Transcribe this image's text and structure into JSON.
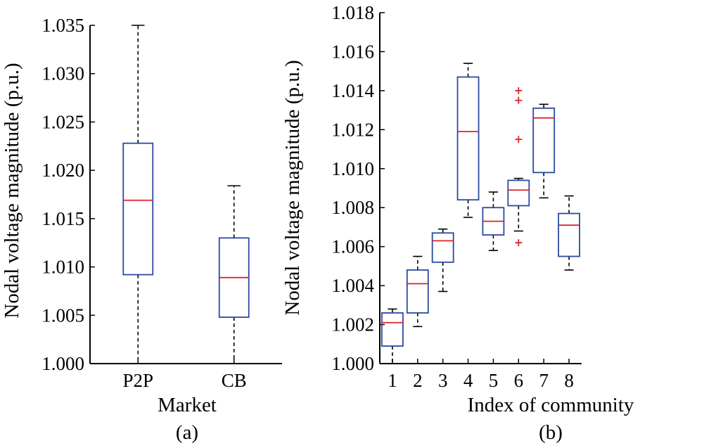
{
  "chart_data": [
    {
      "type": "box",
      "panel_label": "(a)",
      "xlabel": "Market",
      "ylabel": "Nodal voltage magnitude (p.u.)",
      "ylim": [
        1.0,
        1.035
      ],
      "y_ticks": [
        "1.000",
        "1.005",
        "1.010",
        "1.015",
        "1.020",
        "1.025",
        "1.030",
        "1.035"
      ],
      "categories": [
        "P2P",
        "CB"
      ],
      "boxes": [
        {
          "whisker_low": 1.0,
          "q1": 1.0092,
          "median": 1.0169,
          "q3": 1.0228,
          "whisker_high": 1.035,
          "outliers": []
        },
        {
          "whisker_low": 1.0,
          "q1": 1.0048,
          "median": 1.0089,
          "q3": 1.013,
          "whisker_high": 1.0184,
          "outliers": []
        }
      ]
    },
    {
      "type": "box",
      "panel_label": "(b)",
      "xlabel": "Index of community",
      "ylabel": "Nodal voltage magnitude (p.u.)",
      "ylim": [
        1.0,
        1.018
      ],
      "y_ticks": [
        "1.000",
        "1.002",
        "1.004",
        "1.006",
        "1.008",
        "1.010",
        "1.012",
        "1.014",
        "1.016",
        "1.018"
      ],
      "categories": [
        "1",
        "2",
        "3",
        "4",
        "5",
        "6",
        "7",
        "8"
      ],
      "boxes": [
        {
          "whisker_low": 1.0,
          "q1": 1.0009,
          "median": 1.0021,
          "q3": 1.0026,
          "whisker_high": 1.0028,
          "outliers": []
        },
        {
          "whisker_low": 1.0019,
          "q1": 1.0026,
          "median": 1.0041,
          "q3": 1.0048,
          "whisker_high": 1.0055,
          "outliers": []
        },
        {
          "whisker_low": 1.0037,
          "q1": 1.0052,
          "median": 1.0063,
          "q3": 1.0067,
          "whisker_high": 1.0069,
          "outliers": []
        },
        {
          "whisker_low": 1.0075,
          "q1": 1.0084,
          "median": 1.0119,
          "q3": 1.0147,
          "whisker_high": 1.0154,
          "outliers": []
        },
        {
          "whisker_low": 1.0058,
          "q1": 1.0066,
          "median": 1.0073,
          "q3": 1.008,
          "whisker_high": 1.0088,
          "outliers": []
        },
        {
          "whisker_low": 1.0068,
          "q1": 1.0081,
          "median": 1.0089,
          "q3": 1.0094,
          "whisker_high": 1.0095,
          "outliers": [
            1.014,
            1.0135,
            1.0115,
            1.0062
          ]
        },
        {
          "whisker_low": 1.0085,
          "q1": 1.0098,
          "median": 1.0126,
          "q3": 1.0131,
          "whisker_high": 1.0133,
          "outliers": []
        },
        {
          "whisker_low": 1.0048,
          "q1": 1.0055,
          "median": 1.0071,
          "q3": 1.0077,
          "whisker_high": 1.0086,
          "outliers": []
        }
      ]
    }
  ],
  "colors": {
    "box": "#2a4aa0",
    "median": "#e0202a",
    "whisker": "#000000",
    "outlier": "#e0202a",
    "axis": "#000000"
  }
}
